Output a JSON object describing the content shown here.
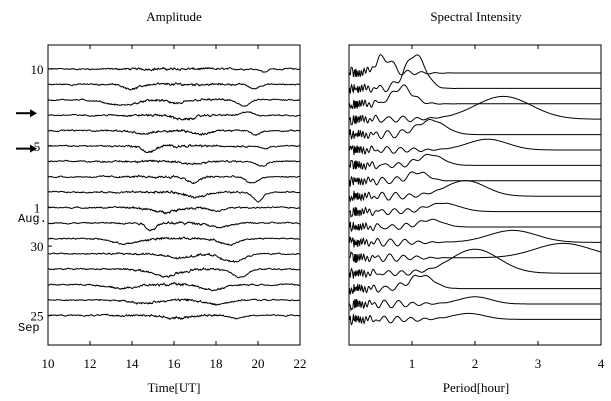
{
  "chart_data": [
    {
      "type": "line",
      "title": "Amplitude",
      "xlabel": "Time[UT]",
      "ylabel": "",
      "xlim": [
        10,
        22
      ],
      "x_ticks": [
        "10",
        "12",
        "14",
        "16",
        "18",
        "20",
        "22"
      ],
      "y_tick_labels": [
        {
          "row": 0,
          "text": "10"
        },
        {
          "row": 5,
          "text": "5"
        },
        {
          "row": 9,
          "text": "1"
        },
        {
          "row": 9.6,
          "text": "Aug."
        },
        {
          "row": 11.5,
          "text": "30"
        },
        {
          "row": 16,
          "text": "25"
        },
        {
          "row": 16.7,
          "text": "Sep"
        }
      ],
      "arrow_rows": [
        3,
        5.3
      ],
      "series": [
        {
          "events": [
            [
              20.3,
              -0.35,
              0.2
            ]
          ]
        },
        {
          "events": [
            [
              14.0,
              -0.5,
              0.5
            ],
            [
              19.8,
              -0.5,
              0.3
            ]
          ]
        },
        {
          "events": [
            [
              13.5,
              -0.6,
              1.0
            ],
            [
              16.2,
              -0.4,
              0.6
            ],
            [
              19.3,
              -0.7,
              0.4
            ]
          ]
        },
        {
          "events": [
            [
              16.5,
              -0.5,
              0.6
            ],
            [
              19.5,
              0.4,
              0.3
            ]
          ]
        },
        {
          "events": [
            [
              14.5,
              -0.4,
              0.6
            ],
            [
              17.3,
              -0.4,
              0.5
            ],
            [
              19.9,
              -0.5,
              0.3
            ]
          ]
        },
        {
          "events": [
            [
              14.8,
              -0.7,
              0.4
            ],
            [
              20.3,
              -0.3,
              0.3
            ]
          ]
        },
        {
          "events": [
            [
              17.0,
              -0.3,
              0.6
            ],
            [
              20.2,
              -0.5,
              0.3
            ]
          ]
        },
        {
          "events": [
            [
              16.9,
              -0.7,
              0.4
            ],
            [
              19.7,
              -0.7,
              0.4
            ]
          ]
        },
        {
          "events": [
            [
              17.0,
              -0.6,
              0.6
            ],
            [
              20.0,
              -1.0,
              0.3
            ]
          ]
        },
        {
          "events": [
            [
              15.5,
              -0.5,
              0.8
            ],
            [
              18.0,
              -0.4,
              0.5
            ]
          ]
        },
        {
          "events": [
            [
              14.9,
              -0.8,
              0.3
            ],
            [
              18.2,
              -0.5,
              0.6
            ]
          ]
        },
        {
          "events": [
            [
              13.7,
              -0.6,
              0.9
            ],
            [
              18.6,
              -0.7,
              0.6
            ]
          ]
        },
        {
          "events": [
            [
              18.8,
              -0.9,
              0.7
            ],
            [
              16.2,
              -0.5,
              0.8
            ]
          ]
        },
        {
          "events": [
            [
              15.6,
              -0.8,
              0.9
            ],
            [
              19.1,
              -0.9,
              0.5
            ]
          ]
        },
        {
          "events": [
            [
              13.5,
              -0.4,
              0.9
            ],
            [
              17.8,
              -0.6,
              0.7
            ]
          ]
        },
        {
          "events": [
            [
              14.5,
              -0.4,
              0.8
            ],
            [
              18.0,
              -0.5,
              0.7
            ]
          ]
        },
        {
          "events": [
            [
              16.1,
              -0.3,
              0.8
            ],
            [
              19.0,
              -0.3,
              0.4
            ]
          ]
        }
      ]
    },
    {
      "type": "line",
      "title": "Spectral Intensity",
      "xlabel": "Period[hour]",
      "ylabel": "",
      "xlim": [
        0.0,
        4.0
      ],
      "x_ticks": [
        "1",
        "2",
        "3",
        "4"
      ],
      "series": [
        {
          "peak_period": 0.55,
          "peak_height": 1.3,
          "width": 0.4
        },
        {
          "peak_period": 1.05,
          "peak_height": 2.8,
          "width": 0.5
        },
        {
          "peak_period": 0.85,
          "peak_height": 1.4,
          "width": 0.5
        },
        {
          "peak_period": 2.45,
          "peak_height": 1.9,
          "width": 1.4
        },
        {
          "peak_period": 1.3,
          "peak_height": 1.2,
          "width": 0.7
        },
        {
          "peak_period": 2.2,
          "peak_height": 0.9,
          "width": 1.0
        },
        {
          "peak_period": 1.3,
          "peak_height": 0.9,
          "width": 0.6
        },
        {
          "peak_period": 1.1,
          "peak_height": 0.7,
          "width": 0.5
        },
        {
          "peak_period": 1.85,
          "peak_height": 1.3,
          "width": 1.0
        },
        {
          "peak_period": 1.5,
          "peak_height": 0.7,
          "width": 0.8
        },
        {
          "peak_period": 1.3,
          "peak_height": 0.6,
          "width": 0.6
        },
        {
          "peak_period": 2.6,
          "peak_height": 1.0,
          "width": 1.2
        },
        {
          "peak_period": 3.4,
          "peak_height": 1.2,
          "width": 1.4
        },
        {
          "peak_period": 2.0,
          "peak_height": 2.0,
          "width": 1.2
        },
        {
          "peak_period": 1.15,
          "peak_height": 1.1,
          "width": 0.6
        },
        {
          "peak_period": 2.0,
          "peak_height": 0.6,
          "width": 0.8
        },
        {
          "peak_period": 1.9,
          "peak_height": 0.5,
          "width": 0.8
        }
      ]
    }
  ]
}
